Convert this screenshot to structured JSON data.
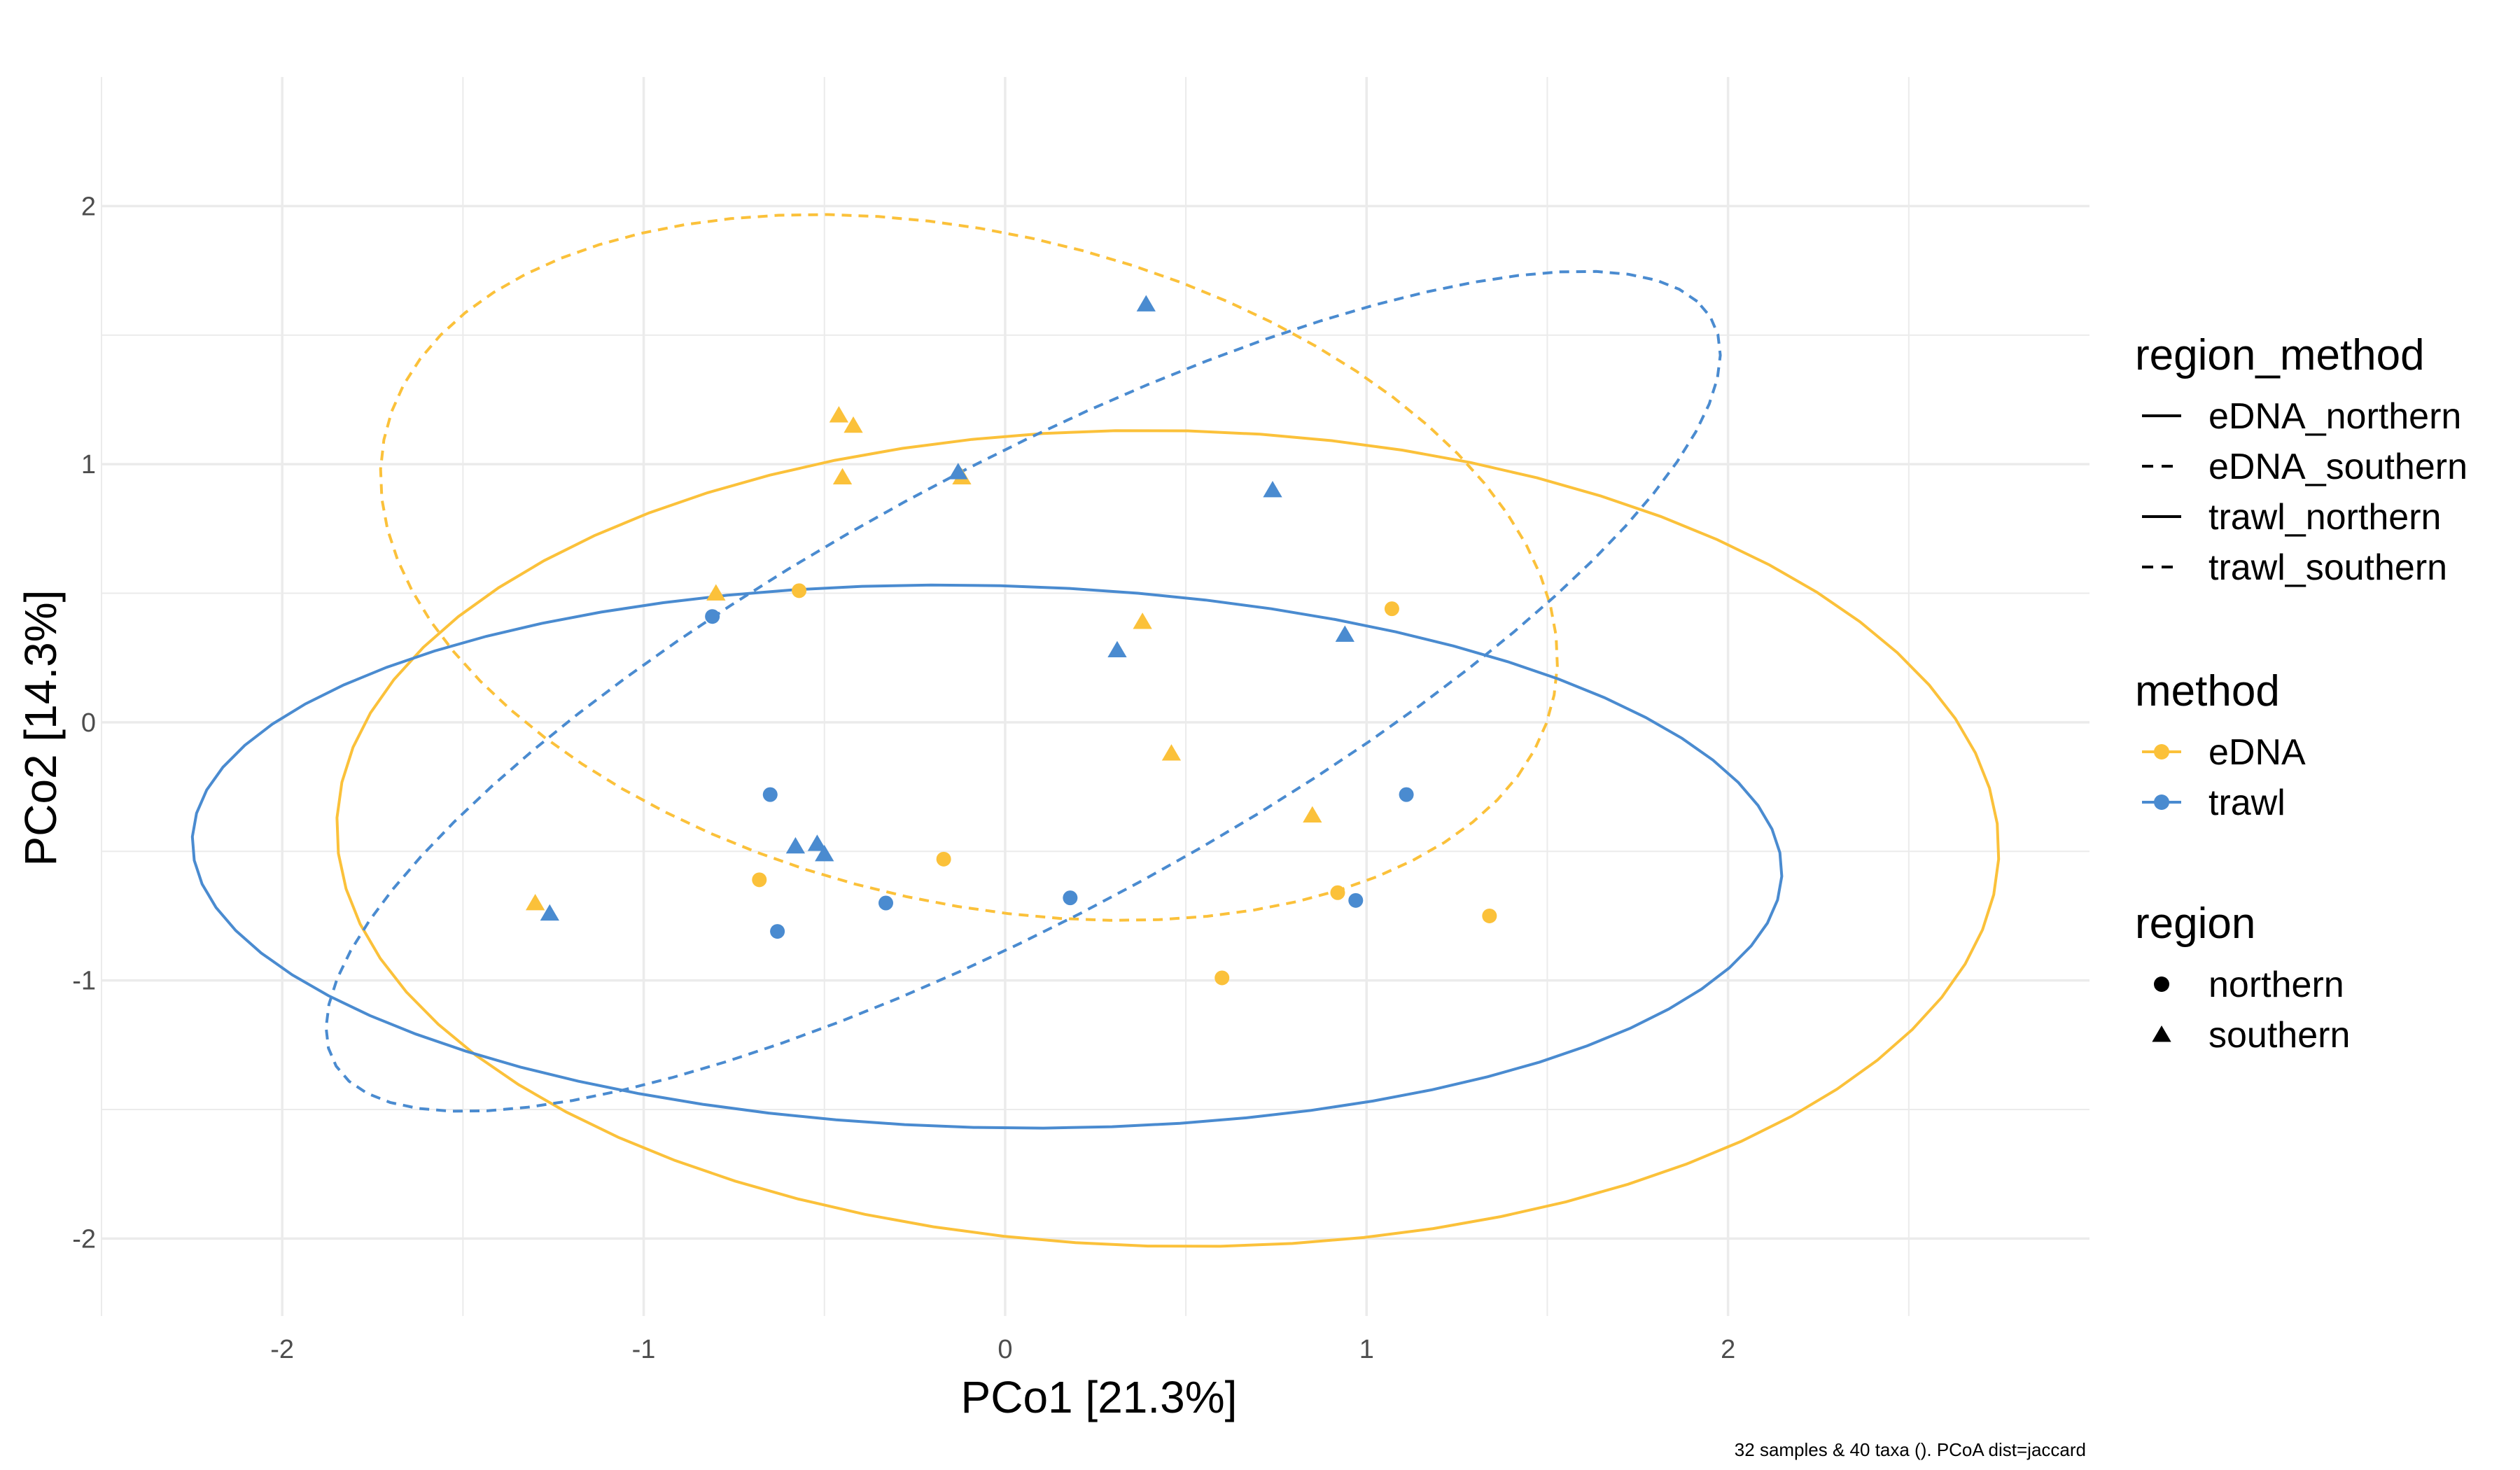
{
  "chart_data": {
    "type": "scatter",
    "xlabel": "PCo1 [21.3%]",
    "ylabel": "PCo2 [14.3%]",
    "caption": "32 samples & 40 taxa (). PCoA dist=jaccard",
    "xlim": [
      -2.5,
      3.0
    ],
    "ylim": [
      -2.3,
      2.5
    ],
    "x_ticks": [
      -2,
      -1,
      0,
      1,
      2
    ],
    "y_ticks": [
      -2,
      -1,
      0,
      1,
      2
    ],
    "grid": true,
    "legend_position": "right",
    "colors": {
      "eDNA": "#FBC13A",
      "trawl": "#4A8BD0"
    },
    "legend": {
      "region_method": {
        "title": "region_method",
        "items": [
          {
            "label": "eDNA_northern",
            "linetype": "solid"
          },
          {
            "label": "eDNA_southern",
            "linetype": "dashed"
          },
          {
            "label": "trawl_northern",
            "linetype": "solid"
          },
          {
            "label": "trawl_southern",
            "linetype": "dashed"
          }
        ]
      },
      "method": {
        "title": "method",
        "items": [
          {
            "label": "eDNA",
            "color": "#FBC13A"
          },
          {
            "label": "trawl",
            "color": "#4A8BD0"
          }
        ]
      },
      "region": {
        "title": "region",
        "items": [
          {
            "label": "northern",
            "shape": "circle"
          },
          {
            "label": "southern",
            "shape": "triangle"
          }
        ]
      }
    },
    "ellipses": [
      {
        "name": "eDNA_northern",
        "method": "eDNA",
        "linetype": "solid",
        "center": [
          0.45,
          -0.45
        ],
        "rx": 2.3,
        "ry": 1.58,
        "angle_deg": -2
      },
      {
        "name": "eDNA_southern",
        "method": "eDNA",
        "linetype": "dashed",
        "center": [
          -0.1,
          0.6
        ],
        "rx": 1.72,
        "ry": 1.25,
        "angle_deg": -28
      },
      {
        "name": "trawl_northern",
        "method": "trawl",
        "linetype": "solid",
        "center": [
          -0.05,
          -0.52
        ],
        "rx": 2.2,
        "ry": 1.05,
        "angle_deg": -2
      },
      {
        "name": "trawl_southern",
        "method": "trawl",
        "linetype": "dashed",
        "center": [
          0.05,
          0.12
        ],
        "rx": 2.4,
        "ry": 0.78,
        "angle_deg": 39
      }
    ],
    "points": [
      {
        "x": -0.8,
        "y": 0.5,
        "method": "eDNA",
        "region": "southern"
      },
      {
        "x": -0.46,
        "y": 1.19,
        "method": "eDNA",
        "region": "southern"
      },
      {
        "x": -0.42,
        "y": 1.15,
        "method": "eDNA",
        "region": "southern"
      },
      {
        "x": -0.45,
        "y": 0.95,
        "method": "eDNA",
        "region": "southern"
      },
      {
        "x": -0.12,
        "y": 0.95,
        "method": "eDNA",
        "region": "southern"
      },
      {
        "x": 0.38,
        "y": 0.39,
        "method": "eDNA",
        "region": "southern"
      },
      {
        "x": 0.46,
        "y": -0.12,
        "method": "eDNA",
        "region": "southern"
      },
      {
        "x": 0.85,
        "y": -0.36,
        "method": "eDNA",
        "region": "southern"
      },
      {
        "x": -1.3,
        "y": -0.7,
        "method": "eDNA",
        "region": "southern"
      },
      {
        "x": -0.57,
        "y": 0.51,
        "method": "eDNA",
        "region": "northern"
      },
      {
        "x": -0.68,
        "y": -0.61,
        "method": "eDNA",
        "region": "northern"
      },
      {
        "x": -0.17,
        "y": -0.53,
        "method": "eDNA",
        "region": "northern"
      },
      {
        "x": 0.6,
        "y": -0.99,
        "method": "eDNA",
        "region": "northern"
      },
      {
        "x": 0.92,
        "y": -0.66,
        "method": "eDNA",
        "region": "northern"
      },
      {
        "x": 1.07,
        "y": 0.44,
        "method": "eDNA",
        "region": "northern"
      },
      {
        "x": 1.34,
        "y": -0.75,
        "method": "eDNA",
        "region": "northern"
      },
      {
        "x": 0.39,
        "y": 1.62,
        "method": "trawl",
        "region": "southern"
      },
      {
        "x": -0.13,
        "y": 0.97,
        "method": "trawl",
        "region": "southern"
      },
      {
        "x": 0.74,
        "y": 0.9,
        "method": "trawl",
        "region": "southern"
      },
      {
        "x": 0.31,
        "y": 0.28,
        "method": "trawl",
        "region": "southern"
      },
      {
        "x": 0.94,
        "y": 0.34,
        "method": "trawl",
        "region": "southern"
      },
      {
        "x": -0.58,
        "y": -0.48,
        "method": "trawl",
        "region": "southern"
      },
      {
        "x": -0.52,
        "y": -0.47,
        "method": "trawl",
        "region": "southern"
      },
      {
        "x": -0.5,
        "y": -0.51,
        "method": "trawl",
        "region": "southern"
      },
      {
        "x": -1.26,
        "y": -0.74,
        "method": "trawl",
        "region": "southern"
      },
      {
        "x": -0.81,
        "y": 0.41,
        "method": "trawl",
        "region": "northern"
      },
      {
        "x": -0.65,
        "y": -0.28,
        "method": "trawl",
        "region": "northern"
      },
      {
        "x": -0.63,
        "y": -0.81,
        "method": "trawl",
        "region": "northern"
      },
      {
        "x": -0.33,
        "y": -0.7,
        "method": "trawl",
        "region": "northern"
      },
      {
        "x": 0.18,
        "y": -0.68,
        "method": "trawl",
        "region": "northern"
      },
      {
        "x": 0.97,
        "y": -0.69,
        "method": "trawl",
        "region": "northern"
      },
      {
        "x": 1.11,
        "y": -0.28,
        "method": "trawl",
        "region": "northern"
      }
    ]
  }
}
